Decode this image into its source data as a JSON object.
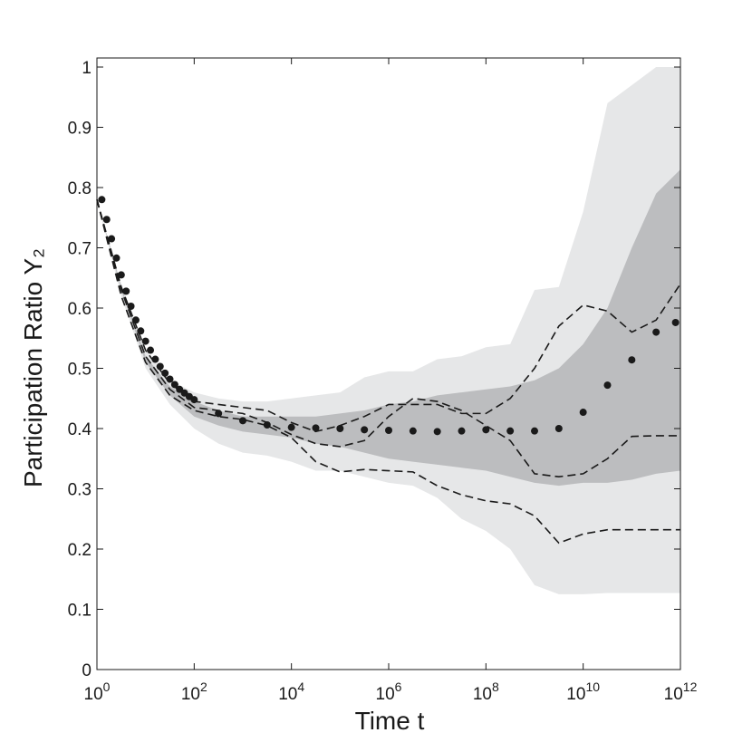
{
  "chart_data": {
    "type": "line",
    "xlabel": "Time t",
    "ylabel": "Participation Ratio Y₂",
    "xscale": "log",
    "xlim": [
      1,
      1000000000000
    ],
    "ylim": [
      0,
      1
    ],
    "xticks": [
      {
        "value": 1,
        "label": "10^0"
      },
      {
        "value": 100,
        "label": "10^2"
      },
      {
        "value": 10000,
        "label": "10^4"
      },
      {
        "value": 1000000,
        "label": "10^6"
      },
      {
        "value": 100000000,
        "label": "10^8"
      },
      {
        "value": 10000000000,
        "label": "10^10"
      },
      {
        "value": 1000000000000,
        "label": "10^12"
      }
    ],
    "yticks": [
      0,
      0.1,
      0.2,
      0.3,
      0.4,
      0.5,
      0.6,
      0.7,
      0.8,
      0.9,
      1
    ],
    "bands": [
      {
        "color": "#e6e7e8",
        "x": [
          1,
          3.162,
          10,
          31.62,
          100,
          316.2,
          1000,
          3162,
          10000,
          31620,
          100000,
          316200,
          1000000,
          3162000,
          10000000,
          31620000,
          100000000,
          316200000,
          1000000000,
          3162000000,
          10000000000,
          31620000000,
          100000000000,
          316200000000,
          1000000000000
        ],
        "lower": [
          0.78,
          0.62,
          0.5,
          0.44,
          0.4,
          0.375,
          0.36,
          0.355,
          0.345,
          0.33,
          0.33,
          0.32,
          0.31,
          0.305,
          0.285,
          0.25,
          0.23,
          0.2,
          0.14,
          0.125,
          0.125,
          0.127,
          0.127,
          0.127,
          0.127
        ],
        "upper": [
          0.78,
          0.64,
          0.53,
          0.48,
          0.46,
          0.45,
          0.445,
          0.445,
          0.45,
          0.455,
          0.46,
          0.485,
          0.495,
          0.495,
          0.515,
          0.52,
          0.535,
          0.54,
          0.63,
          0.635,
          0.76,
          0.94,
          0.97,
          1.0,
          1.0
        ]
      },
      {
        "color": "#bcbdbf",
        "x": [
          1,
          3.162,
          10,
          31.62,
          100,
          316.2,
          1000,
          3162,
          10000,
          31620,
          100000,
          316200,
          1000000,
          3162000,
          10000000,
          31620000,
          100000000,
          316200000,
          1000000000,
          3162000000,
          10000000000,
          31620000000,
          100000000000,
          316200000000,
          1000000000000
        ],
        "lower": [
          0.78,
          0.63,
          0.51,
          0.455,
          0.42,
          0.405,
          0.395,
          0.39,
          0.385,
          0.375,
          0.37,
          0.36,
          0.35,
          0.345,
          0.34,
          0.335,
          0.33,
          0.32,
          0.31,
          0.305,
          0.31,
          0.31,
          0.315,
          0.325,
          0.33
        ],
        "upper": [
          0.78,
          0.635,
          0.52,
          0.47,
          0.445,
          0.43,
          0.42,
          0.42,
          0.42,
          0.42,
          0.425,
          0.43,
          0.44,
          0.445,
          0.455,
          0.46,
          0.465,
          0.47,
          0.48,
          0.5,
          0.54,
          0.6,
          0.7,
          0.79,
          0.83
        ]
      }
    ],
    "series": [
      {
        "style": "dashed",
        "color": "#1a1a1a",
        "x": [
          1,
          3.162,
          10,
          31.62,
          100,
          316.2,
          1000,
          3162,
          10000,
          31620,
          100000,
          316200,
          1000000,
          3162000,
          10000000,
          31620000,
          100000000,
          316200000,
          1000000000,
          3162000000,
          10000000000,
          31620000000,
          100000000000,
          316200000000,
          1000000000000
        ],
        "values": [
          0.78,
          0.635,
          0.53,
          0.475,
          0.445,
          0.44,
          0.435,
          0.43,
          0.41,
          0.395,
          0.405,
          0.42,
          0.44,
          0.44,
          0.44,
          0.425,
          0.425,
          0.45,
          0.5,
          0.57,
          0.605,
          0.595,
          0.56,
          0.58,
          0.64
        ]
      },
      {
        "style": "dashed",
        "color": "#1a1a1a",
        "x": [
          1,
          3.162,
          10,
          31.62,
          100,
          316.2,
          1000,
          3162,
          10000,
          31620,
          100000,
          316200,
          1000000,
          3162000,
          10000000,
          31620000,
          100000000,
          316200000,
          1000000000,
          3162000000,
          10000000000,
          31620000000,
          100000000000,
          316200000000,
          1000000000000
        ],
        "values": [
          0.78,
          0.63,
          0.52,
          0.465,
          0.435,
          0.43,
          0.425,
          0.41,
          0.39,
          0.375,
          0.37,
          0.38,
          0.42,
          0.45,
          0.445,
          0.43,
          0.405,
          0.38,
          0.325,
          0.32,
          0.325,
          0.35,
          0.387,
          0.388,
          0.388
        ]
      },
      {
        "style": "dashed",
        "color": "#1a1a1a",
        "x": [
          1,
          3.162,
          10,
          31.62,
          100,
          316.2,
          1000,
          3162,
          10000,
          31620,
          100000,
          316200,
          1000000,
          3162000,
          10000000,
          31620000,
          100000000,
          316200000,
          1000000000,
          3162000000,
          10000000000,
          31620000000,
          100000000000,
          316200000000,
          1000000000000
        ],
        "values": [
          0.78,
          0.62,
          0.51,
          0.455,
          0.43,
          0.42,
          0.415,
          0.405,
          0.385,
          0.345,
          0.328,
          0.332,
          0.33,
          0.328,
          0.305,
          0.29,
          0.28,
          0.275,
          0.255,
          0.21,
          0.225,
          0.232,
          0.232,
          0.232,
          0.232
        ]
      },
      {
        "style": "markers",
        "color": "#1a1a1a",
        "x": [
          1.259,
          1.585,
          1.995,
          2.512,
          3.162,
          3.981,
          5.012,
          6.31,
          7.943,
          10,
          12.59,
          15.85,
          19.95,
          25.12,
          31.62,
          39.81,
          50.12,
          63.1,
          79.43,
          100,
          316.2,
          1000,
          3162,
          10000,
          31620,
          100000,
          316200,
          1000000,
          3162000,
          10000000,
          31620000,
          100000000,
          316200000,
          1000000000,
          3162000000,
          10000000000,
          31620000000,
          100000000000,
          316200000000,
          794300000000
        ],
        "values": [
          0.78,
          0.747,
          0.715,
          0.683,
          0.655,
          0.628,
          0.603,
          0.58,
          0.562,
          0.545,
          0.53,
          0.515,
          0.503,
          0.492,
          0.482,
          0.473,
          0.465,
          0.459,
          0.453,
          0.448,
          0.425,
          0.413,
          0.406,
          0.402,
          0.401,
          0.4,
          0.398,
          0.397,
          0.396,
          0.395,
          0.396,
          0.398,
          0.396,
          0.396,
          0.4,
          0.427,
          0.472,
          0.514,
          0.56,
          0.576
        ]
      }
    ]
  }
}
